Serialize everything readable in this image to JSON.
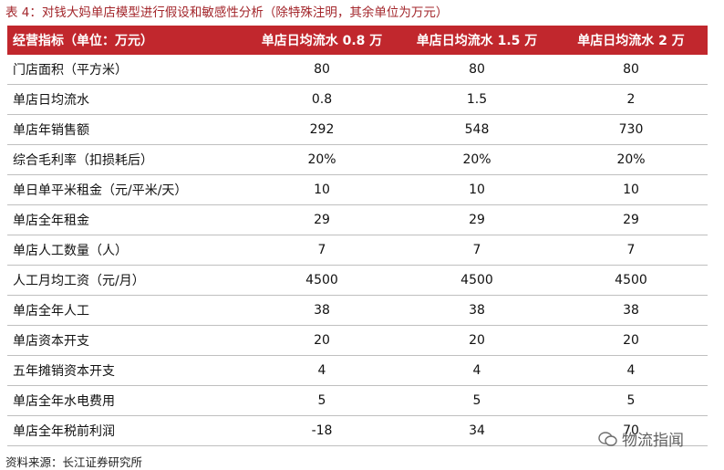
{
  "title": "表 4：对钱大妈单店模型进行假设和敏感性分析（除特殊注明，其余单位为万元）",
  "table": {
    "header": [
      "经营指标（单位：万元）",
      "单店日均流水 0.8 万",
      "单店日均流水 1.5 万",
      "单店日均流水 2 万"
    ],
    "rows": [
      [
        "门店面积（平方米）",
        "80",
        "80",
        "80"
      ],
      [
        "单店日均流水",
        "0.8",
        "1.5",
        "2"
      ],
      [
        "单店年销售额",
        "292",
        "548",
        "730"
      ],
      [
        "综合毛利率（扣损耗后）",
        "20%",
        "20%",
        "20%"
      ],
      [
        "单日单平米租金（元/平米/天）",
        "10",
        "10",
        "10"
      ],
      [
        "单店全年租金",
        "29",
        "29",
        "29"
      ],
      [
        "单店人工数量（人）",
        "7",
        "7",
        "7"
      ],
      [
        "人工月均工资（元/月）",
        "4500",
        "4500",
        "4500"
      ],
      [
        "单店全年人工",
        "38",
        "38",
        "38"
      ],
      [
        "单店资本开支",
        "20",
        "20",
        "20"
      ],
      [
        "五年摊销资本开支",
        "4",
        "4",
        "4"
      ],
      [
        "单店全年水电费用",
        "5",
        "5",
        "5"
      ],
      [
        "单店全年税前利润",
        "-18",
        "34",
        "70"
      ]
    ]
  },
  "source": "资料来源：长江证券研究所",
  "watermark": "物流指闻"
}
